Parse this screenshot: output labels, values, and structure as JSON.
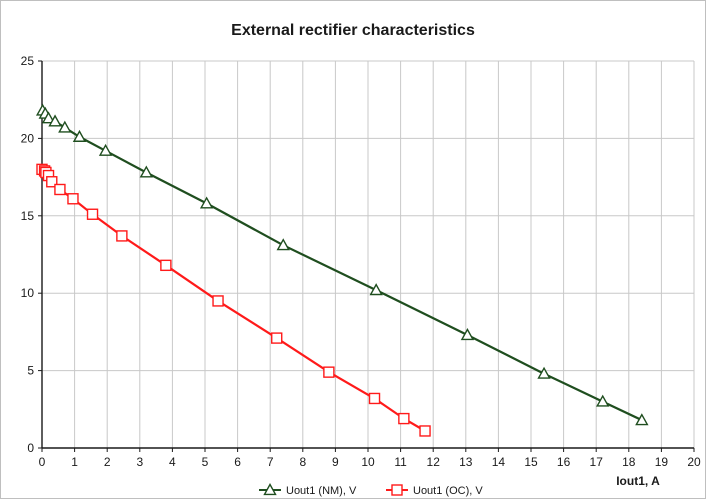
{
  "chart_data": {
    "type": "line",
    "title": "External rectifier characteristics",
    "xlabel": "Iout1, A",
    "ylabel": "",
    "xlim": [
      0,
      20
    ],
    "ylim": [
      0,
      25
    ],
    "xticks": [
      0,
      1,
      2,
      3,
      4,
      5,
      6,
      7,
      8,
      9,
      10,
      11,
      12,
      13,
      14,
      15,
      16,
      17,
      18,
      19,
      20
    ],
    "yticks": [
      0,
      5,
      10,
      15,
      20,
      25
    ],
    "grid": true,
    "legend_position": "bottom",
    "series": [
      {
        "name": "Uout1 (NM), V",
        "color": "#1f4e1f",
        "marker": "triangle",
        "x": [
          0.02,
          0.1,
          0.2,
          0.4,
          0.7,
          1.15,
          1.95,
          3.2,
          5.05,
          7.4,
          10.25,
          13.05,
          15.4,
          17.2,
          18.4
        ],
        "y": [
          21.8,
          21.6,
          21.3,
          21.1,
          20.7,
          20.1,
          19.2,
          17.8,
          15.8,
          13.1,
          10.2,
          7.3,
          4.8,
          3.0,
          1.8
        ]
      },
      {
        "name": "Uout1 (OC), V",
        "color": "#ff1a1a",
        "marker": "square",
        "x": [
          0.0,
          0.08,
          0.12,
          0.2,
          0.3,
          0.55,
          0.95,
          1.55,
          2.45,
          3.8,
          5.4,
          7.2,
          8.8,
          10.2,
          11.1,
          11.75
        ],
        "y": [
          18.0,
          17.9,
          17.8,
          17.6,
          17.2,
          16.7,
          16.1,
          15.1,
          13.7,
          11.8,
          9.5,
          7.1,
          4.9,
          3.2,
          1.9,
          1.1
        ]
      }
    ]
  }
}
